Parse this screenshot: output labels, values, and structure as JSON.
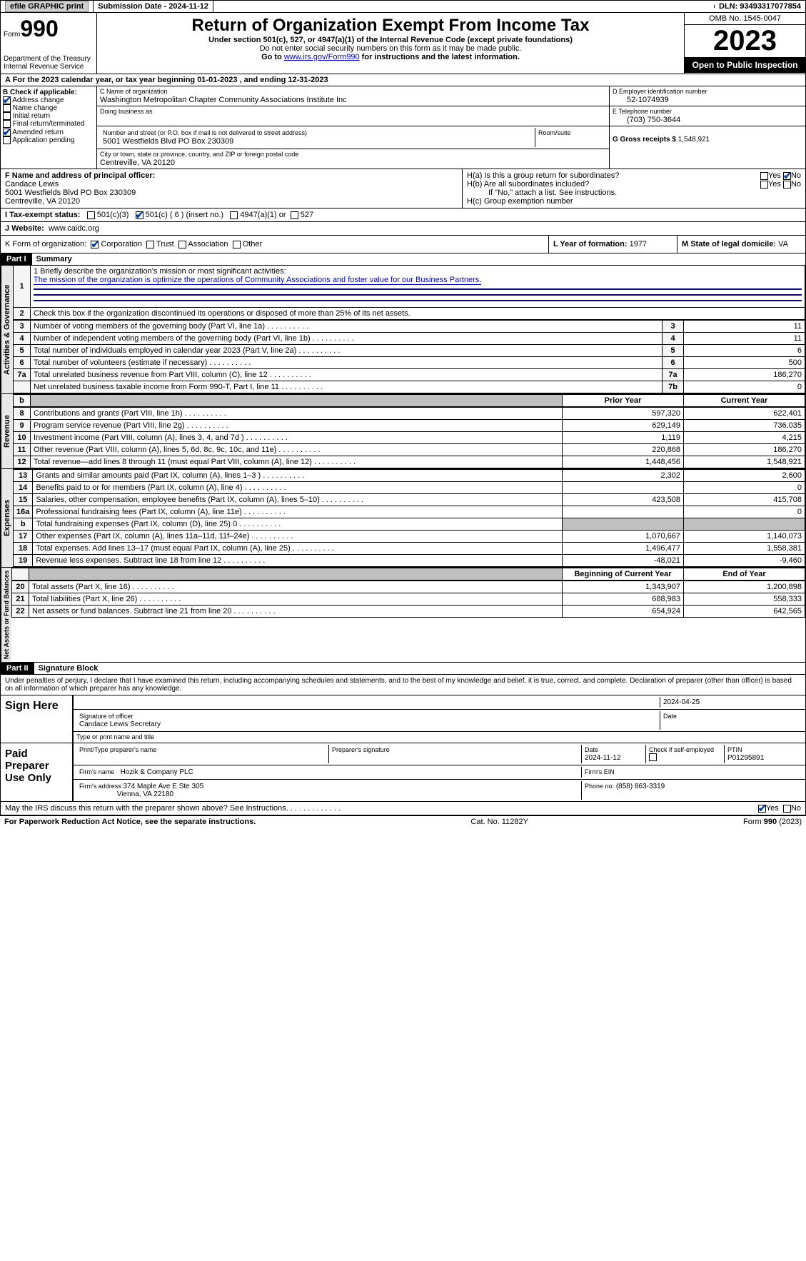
{
  "topbar": {
    "efile": "efile GRAPHIC print",
    "submission": "Submission Date - 2024-11-12",
    "dln": "DLN: 93493317077854"
  },
  "header": {
    "form_word": "Form",
    "form_num": "990",
    "title": "Return of Organization Exempt From Income Tax",
    "subtitle": "Under section 501(c), 527, or 4947(a)(1) of the Internal Revenue Code (except private foundations)",
    "ssn_note": "Do not enter social security numbers on this form as it may be made public.",
    "goto": "Go to ",
    "goto_link": "www.irs.gov/Form990",
    "goto_tail": " for instructions and the latest information.",
    "dept": "Department of the Treasury\nInternal Revenue Service",
    "omb": "OMB No. 1545-0047",
    "year": "2023",
    "open": "Open to Public Inspection"
  },
  "taxyear": "A For the 2023 calendar year, or tax year beginning 01-01-2023    , and ending 12-31-2023",
  "b": {
    "label": "B Check if applicable:",
    "items": [
      "Address change",
      "Name change",
      "Initial return",
      "Final return/terminated",
      "Amended return",
      "Application pending"
    ],
    "checked": [
      true,
      false,
      false,
      false,
      true,
      false
    ]
  },
  "c": {
    "name_lbl": "C Name of organization",
    "name": "Washington Metropolitan Chapter Community Associations Institute Inc",
    "dba_lbl": "Doing business as",
    "dba": "",
    "addr_lbl": "Number and street (or P.O. box if mail is not delivered to street address)",
    "room_lbl": "Room/suite",
    "addr": "5001 Westfields Blvd PO Box 230309",
    "city_lbl": "City or town, state or province, country, and ZIP or foreign postal code",
    "city": "Centreville, VA  20120"
  },
  "d": {
    "lbl": "D Employer identification number",
    "val": "52-1074939"
  },
  "e": {
    "lbl": "E Telephone number",
    "val": "(703) 750-3644"
  },
  "g": {
    "lbl": "G Gross receipts $",
    "val": "1,548,921"
  },
  "f": {
    "lbl": "F  Name and address of principal officer:",
    "name": "Candace Lewis",
    "addr1": "5001 Westfields Blvd PO Box 230309",
    "addr2": "Centreville, VA  20120"
  },
  "h": {
    "a": "H(a)  Is this a group return for subordinates?",
    "b": "H(b)  Are all subordinates included?",
    "b_note": "If \"No,\" attach a list. See instructions.",
    "c": "H(c)  Group exemption number",
    "yes": "Yes",
    "no": "No",
    "ha_no_checked": true
  },
  "i": {
    "lbl": "I  Tax-exempt status:",
    "opts": [
      "501(c)(3)",
      "501(c) ( 6 ) (insert no.)",
      "4947(a)(1) or",
      "527"
    ],
    "checked_idx": 1
  },
  "j": {
    "lbl": "J  Website:",
    "val": "www.caidc.org"
  },
  "k": {
    "lbl": "K Form of organization:",
    "opts": [
      "Corporation",
      "Trust",
      "Association",
      "Other"
    ],
    "checked_idx": 0
  },
  "l": {
    "lbl": "L Year of formation:",
    "val": "1977"
  },
  "m": {
    "lbl": "M State of legal domicile:",
    "val": "VA"
  },
  "part1": {
    "hdr": "Part I",
    "title": "Summary",
    "mission_lbl": "1  Briefly describe the organization's mission or most significant activities:",
    "mission": "The mission of the organization is optimize the operations of Community Associations and foster value for our Business Partners.",
    "line2": "Check this box      if the organization discontinued its operations or disposed of more than 25% of its net assets.",
    "tabs": {
      "ag": "Activities & Governance",
      "rev": "Revenue",
      "exp": "Expenses",
      "na": "Net Assets or Fund Balances"
    },
    "rows_ag": [
      {
        "n": "3",
        "d": "Number of voting members of the governing body (Part VI, line 1a)",
        "box": "3",
        "v": "11"
      },
      {
        "n": "4",
        "d": "Number of independent voting members of the governing body (Part VI, line 1b)",
        "box": "4",
        "v": "11"
      },
      {
        "n": "5",
        "d": "Total number of individuals employed in calendar year 2023 (Part V, line 2a)",
        "box": "5",
        "v": "6"
      },
      {
        "n": "6",
        "d": "Total number of volunteers (estimate if necessary)",
        "box": "6",
        "v": "500"
      },
      {
        "n": "7a",
        "d": "Total unrelated business revenue from Part VIII, column (C), line 12",
        "box": "7a",
        "v": "186,270"
      },
      {
        "n": "",
        "d": "Net unrelated business taxable income from Form 990-T, Part I, line 11",
        "box": "7b",
        "v": "0"
      }
    ],
    "hdr_prior": "Prior Year",
    "hdr_curr": "Current Year",
    "rows_rev": [
      {
        "n": "8",
        "d": "Contributions and grants (Part VIII, line 1h)",
        "p": "597,320",
        "c": "622,401"
      },
      {
        "n": "9",
        "d": "Program service revenue (Part VIII, line 2g)",
        "p": "629,149",
        "c": "736,035"
      },
      {
        "n": "10",
        "d": "Investment income (Part VIII, column (A), lines 3, 4, and 7d )",
        "p": "1,119",
        "c": "4,215"
      },
      {
        "n": "11",
        "d": "Other revenue (Part VIII, column (A), lines 5, 6d, 8c, 9c, 10c, and 11e)",
        "p": "220,868",
        "c": "186,270"
      },
      {
        "n": "12",
        "d": "Total revenue—add lines 8 through 11 (must equal Part VIII, column (A), line 12)",
        "p": "1,448,456",
        "c": "1,548,921"
      }
    ],
    "rows_exp": [
      {
        "n": "13",
        "d": "Grants and similar amounts paid (Part IX, column (A), lines 1–3 )",
        "p": "2,302",
        "c": "2,600"
      },
      {
        "n": "14",
        "d": "Benefits paid to or for members (Part IX, column (A), line 4)",
        "p": "",
        "c": "0"
      },
      {
        "n": "15",
        "d": "Salaries, other compensation, employee benefits (Part IX, column (A), lines 5–10)",
        "p": "423,508",
        "c": "415,708"
      },
      {
        "n": "16a",
        "d": "Professional fundraising fees (Part IX, column (A), line 11e)",
        "p": "",
        "c": "0"
      },
      {
        "n": "b",
        "d": "Total fundraising expenses (Part IX, column (D), line 25) 0",
        "p": "__shade__",
        "c": "__shade__"
      },
      {
        "n": "17",
        "d": "Other expenses (Part IX, column (A), lines 11a–11d, 11f–24e)",
        "p": "1,070,667",
        "c": "1,140,073"
      },
      {
        "n": "18",
        "d": "Total expenses. Add lines 13–17 (must equal Part IX, column (A), line 25)",
        "p": "1,496,477",
        "c": "1,558,381"
      },
      {
        "n": "19",
        "d": "Revenue less expenses. Subtract line 18 from line 12",
        "p": "-48,021",
        "c": "-9,460"
      }
    ],
    "hdr_begin": "Beginning of Current Year",
    "hdr_end": "End of Year",
    "rows_na": [
      {
        "n": "20",
        "d": "Total assets (Part X, line 16)",
        "p": "1,343,907",
        "c": "1,200,898"
      },
      {
        "n": "21",
        "d": "Total liabilities (Part X, line 26)",
        "p": "688,983",
        "c": "558,333"
      },
      {
        "n": "22",
        "d": "Net assets or fund balances. Subtract line 21 from line 20",
        "p": "654,924",
        "c": "642,565"
      }
    ]
  },
  "part2": {
    "hdr": "Part II",
    "title": "Signature Block",
    "decl": "Under penalties of perjury, I declare that I have examined this return, including accompanying schedules and statements, and to the best of my knowledge and belief, it is true, correct, and complete. Declaration of preparer (other than officer) is based on all information of which preparer has any knowledge.",
    "sign_here": "Sign Here",
    "sig_officer": "Signature of officer",
    "date": "Date",
    "date_val": "2024-04-25",
    "officer": "Candace Lewis  Secretary",
    "type_name": "Type or print name and title",
    "paid": "Paid Preparer Use Only",
    "prep_name_lbl": "Print/Type preparer's name",
    "prep_sig_lbl": "Preparer's signature",
    "prep_date_lbl": "Date",
    "prep_date": "2024-11-12",
    "self_emp": "Check        if self-employed",
    "ptin_lbl": "PTIN",
    "ptin": "P01295891",
    "firm_name_lbl": "Firm's name",
    "firm_name": "Hozik & Company PLC",
    "firm_ein_lbl": "Firm's EIN",
    "firm_addr_lbl": "Firm's address",
    "firm_addr1": "374 Maple Ave E Ste 305",
    "firm_addr2": "Vienna, VA  22180",
    "phone_lbl": "Phone no.",
    "phone": "(858) 863-3319",
    "maywe": "May the IRS discuss this return with the preparer shown above? See Instructions.",
    "yes": "Yes",
    "no": "No"
  },
  "footer": {
    "left": "For Paperwork Reduction Act Notice, see the separate instructions.",
    "mid": "Cat. No. 11282Y",
    "right_form": "Form ",
    "right_990": "990",
    "right_yr": " (2023)"
  }
}
